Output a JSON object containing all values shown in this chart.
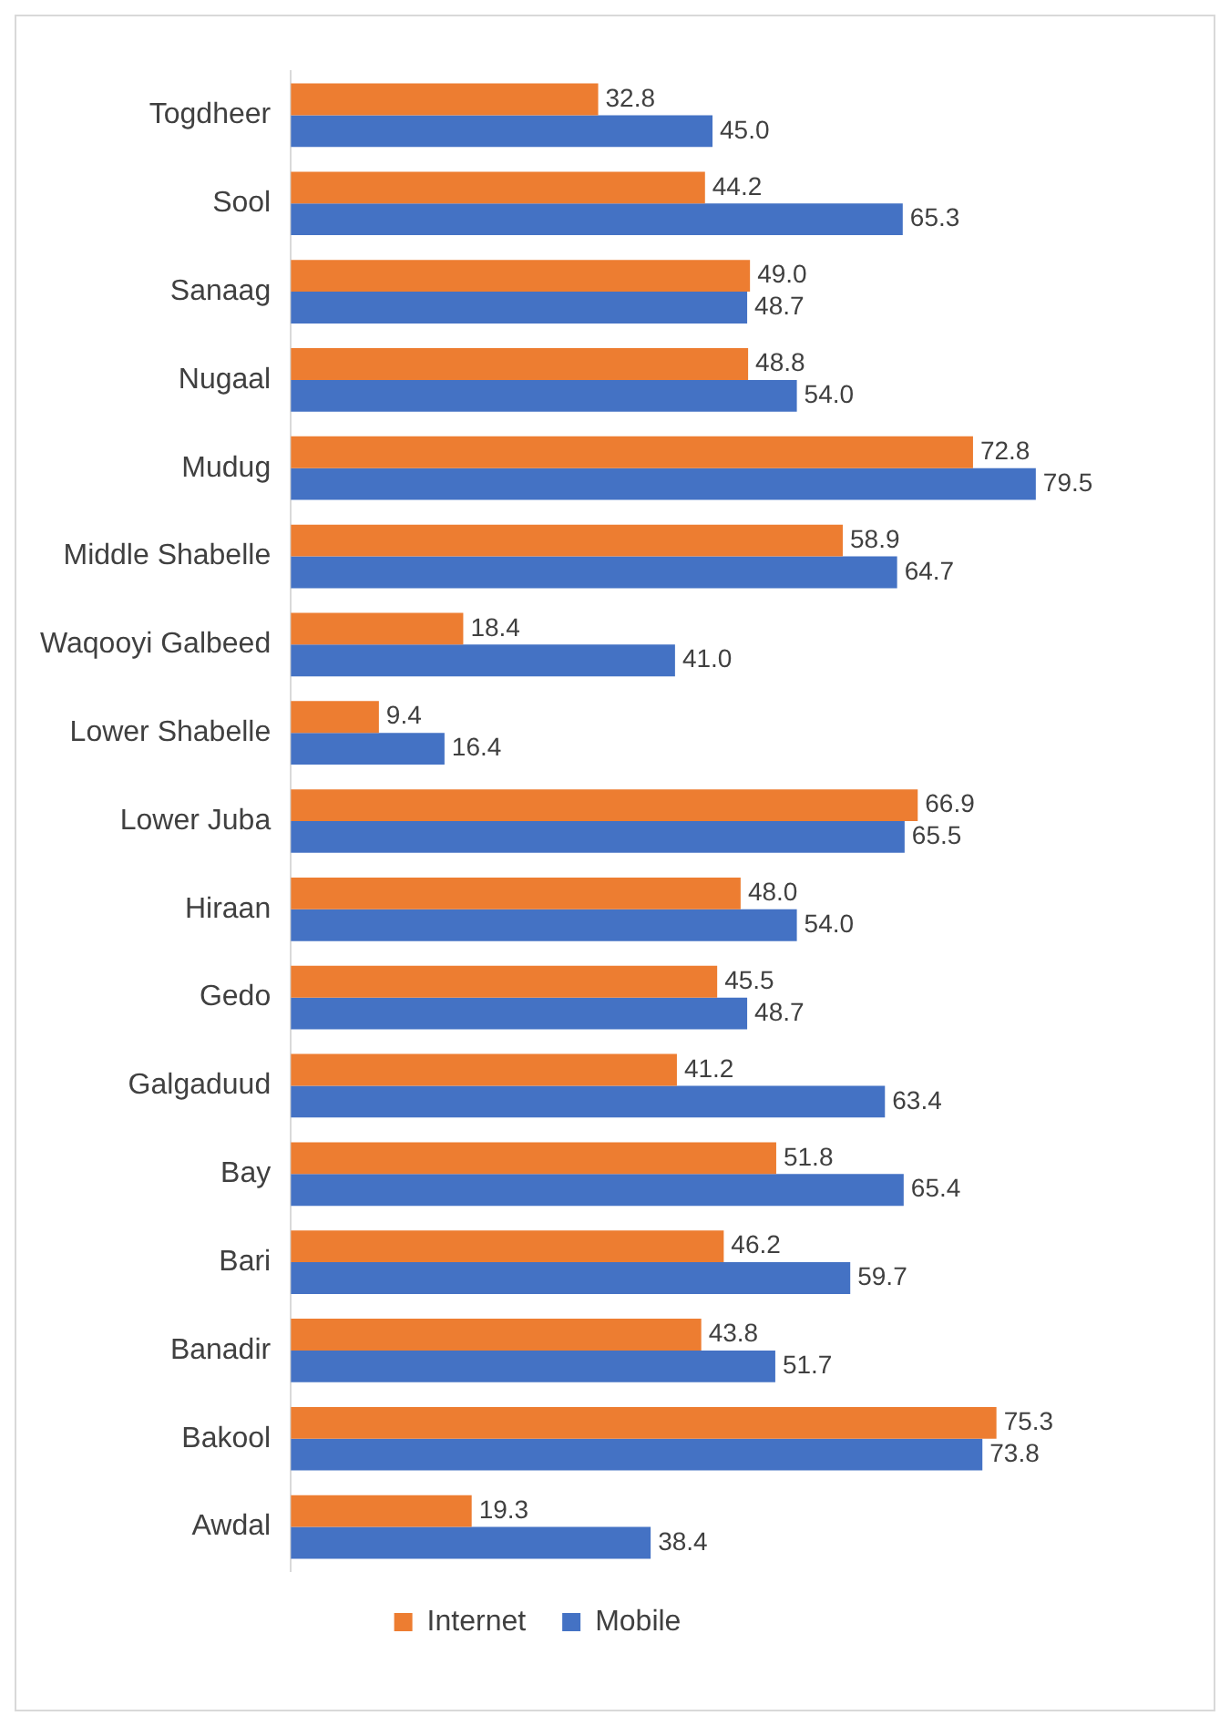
{
  "chart_data": {
    "type": "bar",
    "orientation": "horizontal",
    "categories": [
      "Togdheer",
      "Sool",
      "Sanaag",
      "Nugaal",
      "Mudug",
      "Middle Shabelle",
      "Waqooyi Galbeed",
      "Lower Shabelle",
      "Lower Juba",
      "Hiraan",
      "Gedo",
      "Galgaduud",
      "Bay",
      "Bari",
      "Banadir",
      "Bakool",
      "Awdal"
    ],
    "series": [
      {
        "name": "Internet",
        "color": "#ed7d31",
        "values": [
          32.8,
          44.2,
          49.0,
          48.8,
          72.8,
          58.9,
          18.4,
          9.4,
          66.9,
          48.0,
          45.5,
          41.2,
          51.8,
          46.2,
          43.8,
          75.3,
          19.3
        ],
        "value_labels": [
          "32.8",
          "44.2",
          "49.0",
          "48.8",
          "72.8",
          "58.9",
          "18.4",
          "9.4",
          "66.9",
          "48.0",
          "45.5",
          "41.2",
          "51.8",
          "46.2",
          "43.8",
          "75.3",
          "19.3"
        ]
      },
      {
        "name": "Mobile",
        "color": "#4472c4",
        "values": [
          45.0,
          65.3,
          48.7,
          54.0,
          79.5,
          64.7,
          41.0,
          16.4,
          65.5,
          54.0,
          48.7,
          63.4,
          65.4,
          59.7,
          51.7,
          73.8,
          38.4
        ],
        "value_labels": [
          "45.0",
          "65.3",
          "48.7",
          "54.0",
          "79.5",
          "64.7",
          "41.0",
          "16.4",
          "65.5",
          "54.0",
          "48.7",
          "63.4",
          "65.4",
          "59.7",
          "51.7",
          "73.8",
          "38.4"
        ]
      }
    ],
    "tick_labels": "y",
    "grid": false,
    "legend": "bottom"
  }
}
